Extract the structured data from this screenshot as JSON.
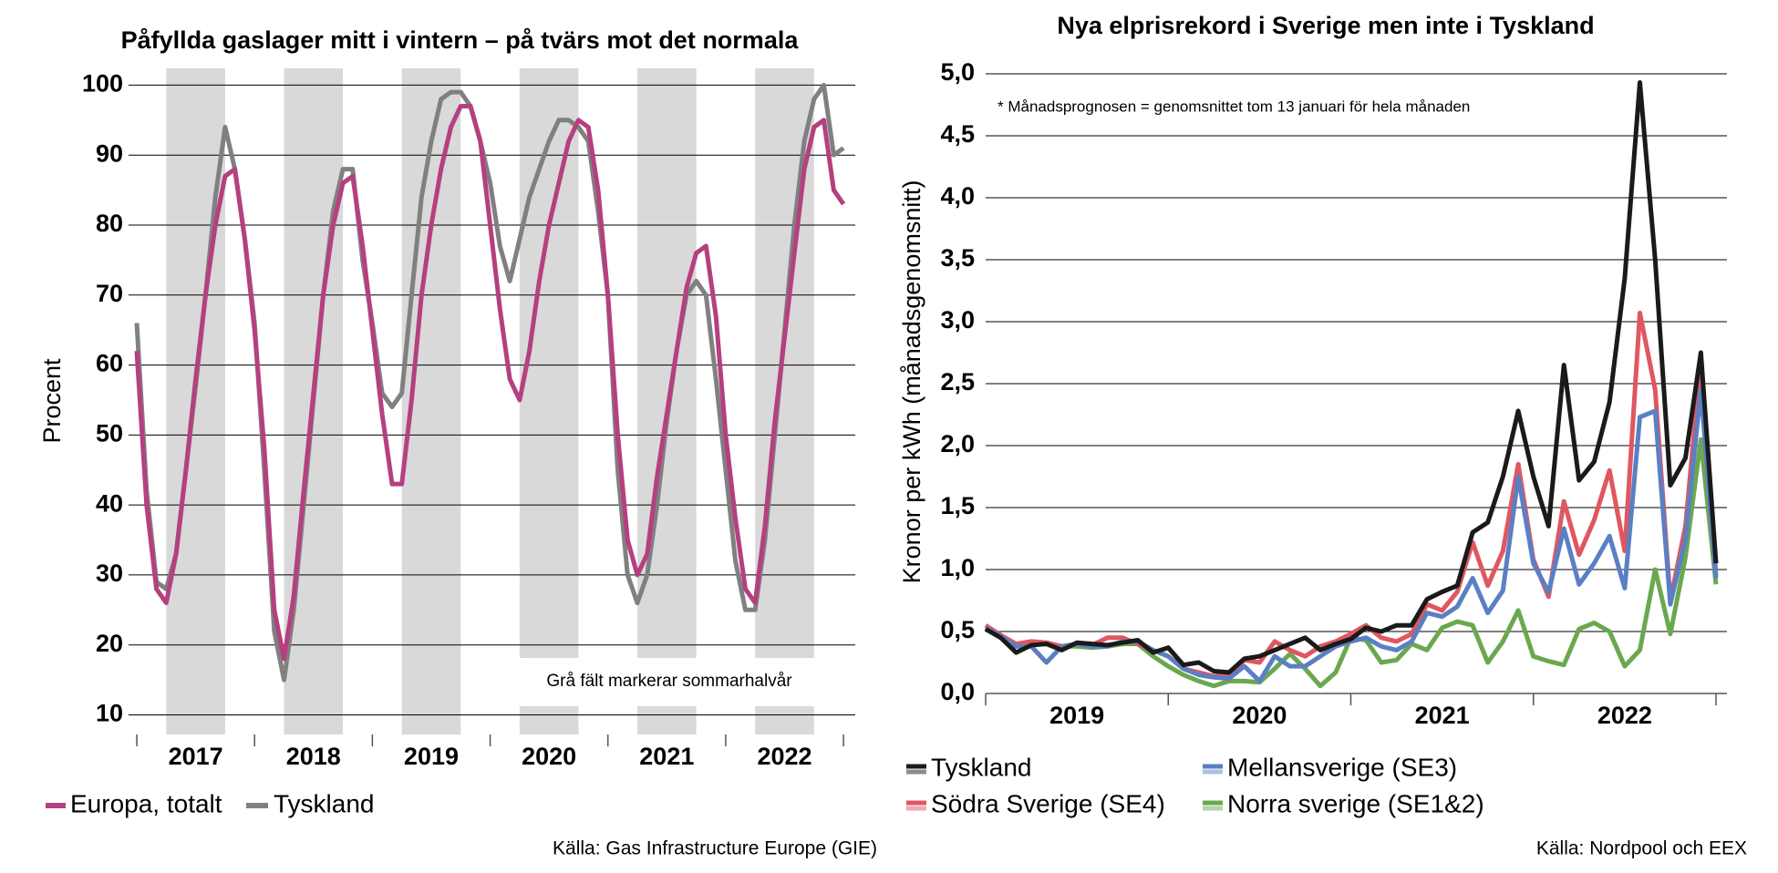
{
  "chart_data": [
    {
      "type": "line",
      "title": "Påfyllda gaslager mitt i vintern – på tvärs mot det normala",
      "ylabel": "Procent",
      "annotation": "Grå fält markerar sommarhalvår",
      "source": "Källa: Gas Infrastructure Europe (GIE)",
      "grid": true,
      "xlim": [
        2016.93,
        2023.1
      ],
      "xticks": [
        {
          "value": 2017.5,
          "label": "2017"
        },
        {
          "value": 2018.5,
          "label": "2018"
        },
        {
          "value": 2019.5,
          "label": "2019"
        },
        {
          "value": 2020.5,
          "label": "2020"
        },
        {
          "value": 2021.5,
          "label": "2021"
        },
        {
          "value": 2022.5,
          "label": "2022"
        }
      ],
      "xminorticks": [
        2017,
        2018,
        2019,
        2020,
        2021,
        2022,
        2023
      ],
      "shaded": [
        [
          2017.25,
          2017.75
        ],
        [
          2018.25,
          2018.75
        ],
        [
          2019.25,
          2019.75
        ],
        [
          2020.25,
          2020.75
        ],
        [
          2021.25,
          2021.75
        ],
        [
          2022.25,
          2022.75
        ]
      ],
      "ylim": [
        7.2,
        102.4
      ],
      "yticks": [
        10,
        20,
        30,
        40,
        50,
        60,
        70,
        80,
        90,
        100
      ],
      "x": [
        2017,
        2017.083,
        2017.167,
        2017.25,
        2017.333,
        2017.417,
        2017.5,
        2017.583,
        2017.667,
        2017.75,
        2017.833,
        2017.917,
        2018,
        2018.083,
        2018.167,
        2018.25,
        2018.333,
        2018.417,
        2018.5,
        2018.583,
        2018.667,
        2018.75,
        2018.833,
        2018.917,
        2019,
        2019.083,
        2019.167,
        2019.25,
        2019.333,
        2019.417,
        2019.5,
        2019.583,
        2019.667,
        2019.75,
        2019.833,
        2019.917,
        2020,
        2020.083,
        2020.167,
        2020.25,
        2020.333,
        2020.417,
        2020.5,
        2020.583,
        2020.667,
        2020.75,
        2020.833,
        2020.917,
        2021,
        2021.083,
        2021.167,
        2021.25,
        2021.333,
        2021.417,
        2021.5,
        2021.583,
        2021.667,
        2021.75,
        2021.833,
        2021.917,
        2022,
        2022.083,
        2022.167,
        2022.25,
        2022.333,
        2022.417,
        2022.5,
        2022.583,
        2022.667,
        2022.75,
        2022.833,
        2022.917,
        2023
      ],
      "series": [
        {
          "name": "Europa, totalt",
          "color": "#b5407f",
          "values": [
            62,
            40,
            28,
            26,
            33,
            45,
            58,
            70,
            80,
            87,
            88,
            78,
            65,
            48,
            25,
            18,
            27,
            42,
            56,
            70,
            80,
            86,
            87,
            77,
            65,
            53,
            43,
            43,
            55,
            70,
            80,
            88,
            94,
            97,
            97,
            92,
            80,
            68,
            58,
            55,
            62,
            72,
            80,
            86,
            92,
            95,
            94,
            85,
            70,
            50,
            35,
            30,
            33,
            44,
            53,
            62,
            71,
            76,
            77,
            67,
            50,
            38,
            28,
            26,
            37,
            52,
            64,
            76,
            88,
            94,
            95,
            85,
            83
          ]
        },
        {
          "name": "Tyskland",
          "color": "#808080",
          "values": [
            66,
            42,
            29,
            28,
            33,
            45,
            57,
            70,
            84,
            94,
            88,
            78,
            66,
            45,
            22,
            15,
            25,
            40,
            55,
            70,
            82,
            88,
            88,
            75,
            66,
            56,
            54,
            56,
            70,
            84,
            92,
            98,
            99,
            99,
            97,
            92,
            86,
            77,
            72,
            78,
            84,
            88,
            92,
            95,
            95,
            94,
            92,
            82,
            70,
            45,
            30,
            26,
            30,
            40,
            52,
            62,
            70,
            72,
            70,
            58,
            45,
            32,
            25,
            25,
            35,
            50,
            65,
            80,
            92,
            98,
            100,
            90,
            91
          ]
        }
      ]
    },
    {
      "type": "line",
      "title": "Nya elprisrekord i Sverige men inte i Tyskland",
      "ylabel": "Kronor per kWh (månadsgenomsnitt)",
      "annotation": "* Månadsprognosen = genomsnittet tom 13 januari för hela månaden",
      "source": "Källa: Nordpool och EEX",
      "grid": true,
      "xlim": [
        2019,
        2023.06
      ],
      "xticks": [
        {
          "value": 2019.5,
          "label": "2019"
        },
        {
          "value": 2020.5,
          "label": "2020"
        },
        {
          "value": 2021.5,
          "label": "2021"
        },
        {
          "value": 2022.5,
          "label": "2022"
        }
      ],
      "xminorticks": [
        2019,
        2020,
        2021,
        2022,
        2023
      ],
      "ylim": [
        0,
        5
      ],
      "yticks": [
        {
          "value": 0,
          "label": "0,0"
        },
        {
          "value": 0.5,
          "label": "0,5"
        },
        {
          "value": 1,
          "label": "1,0"
        },
        {
          "value": 1.5,
          "label": "1,5"
        },
        {
          "value": 2,
          "label": "2,0"
        },
        {
          "value": 2.5,
          "label": "2,5"
        },
        {
          "value": 3,
          "label": "3,0"
        },
        {
          "value": 3.5,
          "label": "3,5"
        },
        {
          "value": 4,
          "label": "4,0"
        },
        {
          "value": 4.5,
          "label": "4,5"
        },
        {
          "value": 5,
          "label": "5,0"
        }
      ],
      "x": [
        2019,
        2019.083,
        2019.167,
        2019.25,
        2019.333,
        2019.417,
        2019.5,
        2019.583,
        2019.667,
        2019.75,
        2019.833,
        2019.917,
        2020,
        2020.083,
        2020.167,
        2020.25,
        2020.333,
        2020.417,
        2020.5,
        2020.583,
        2020.667,
        2020.75,
        2020.833,
        2020.917,
        2021,
        2021.083,
        2021.167,
        2021.25,
        2021.333,
        2021.417,
        2021.5,
        2021.583,
        2021.667,
        2021.75,
        2021.833,
        2021.917,
        2022,
        2022.083,
        2022.167,
        2022.25,
        2022.333,
        2022.417,
        2022.5,
        2022.583,
        2022.667,
        2022.75,
        2022.833,
        2022.917,
        2023
      ],
      "series": [
        {
          "name": "Tyskland",
          "color": "#1a1a1a",
          "values": [
            0.52,
            0.45,
            0.33,
            0.39,
            0.4,
            0.35,
            0.41,
            0.4,
            0.39,
            0.41,
            0.43,
            0.33,
            0.37,
            0.23,
            0.25,
            0.18,
            0.17,
            0.28,
            0.3,
            0.35,
            0.4,
            0.45,
            0.35,
            0.4,
            0.44,
            0.53,
            0.5,
            0.55,
            0.55,
            0.76,
            0.82,
            0.87,
            1.3,
            1.38,
            1.75,
            2.28,
            1.75,
            1.35,
            2.65,
            1.72,
            1.87,
            2.35,
            3.35,
            4.93,
            3.5,
            1.68,
            1.9,
            2.75,
            1.05
          ]
        },
        {
          "name": "Mellansverige (SE3)",
          "color": "#5b7fc4",
          "values": [
            0.53,
            0.46,
            0.38,
            0.38,
            0.25,
            0.38,
            0.4,
            0.38,
            0.38,
            0.42,
            0.42,
            0.35,
            0.3,
            0.2,
            0.15,
            0.13,
            0.12,
            0.22,
            0.1,
            0.3,
            0.22,
            0.22,
            0.3,
            0.38,
            0.42,
            0.45,
            0.38,
            0.35,
            0.42,
            0.65,
            0.62,
            0.7,
            0.93,
            0.65,
            0.83,
            1.75,
            1.05,
            0.82,
            1.33,
            0.88,
            1.05,
            1.27,
            0.85,
            2.23,
            2.28,
            0.72,
            1.25,
            2.45,
            0.93
          ]
        },
        {
          "name": "Södra Sverige (SE4)",
          "color": "#e0575f",
          "values": [
            0.55,
            0.47,
            0.4,
            0.42,
            0.41,
            0.38,
            0.4,
            0.39,
            0.45,
            0.45,
            0.4,
            0.35,
            0.3,
            0.2,
            0.17,
            0.14,
            0.15,
            0.27,
            0.25,
            0.42,
            0.35,
            0.3,
            0.38,
            0.42,
            0.48,
            0.55,
            0.45,
            0.42,
            0.48,
            0.72,
            0.67,
            0.82,
            1.22,
            0.87,
            1.15,
            1.85,
            1.08,
            0.78,
            1.55,
            1.12,
            1.4,
            1.8,
            1.15,
            3.07,
            2.45,
            0.75,
            1.35,
            2.7,
            0.95
          ]
        },
        {
          "name": "Norra sverige (SE1&2)",
          "color": "#6aa84f",
          "values": [
            0.52,
            0.45,
            0.38,
            0.4,
            0.4,
            0.38,
            0.38,
            0.37,
            0.38,
            0.4,
            0.4,
            0.3,
            0.22,
            0.15,
            0.1,
            0.06,
            0.1,
            0.1,
            0.09,
            0.2,
            0.32,
            0.2,
            0.06,
            0.17,
            0.45,
            0.43,
            0.25,
            0.27,
            0.4,
            0.35,
            0.53,
            0.58,
            0.55,
            0.25,
            0.42,
            0.67,
            0.3,
            0.26,
            0.23,
            0.52,
            0.57,
            0.5,
            0.22,
            0.35,
            1.0,
            0.48,
            1.1,
            2.05,
            0.88
          ]
        }
      ]
    }
  ]
}
